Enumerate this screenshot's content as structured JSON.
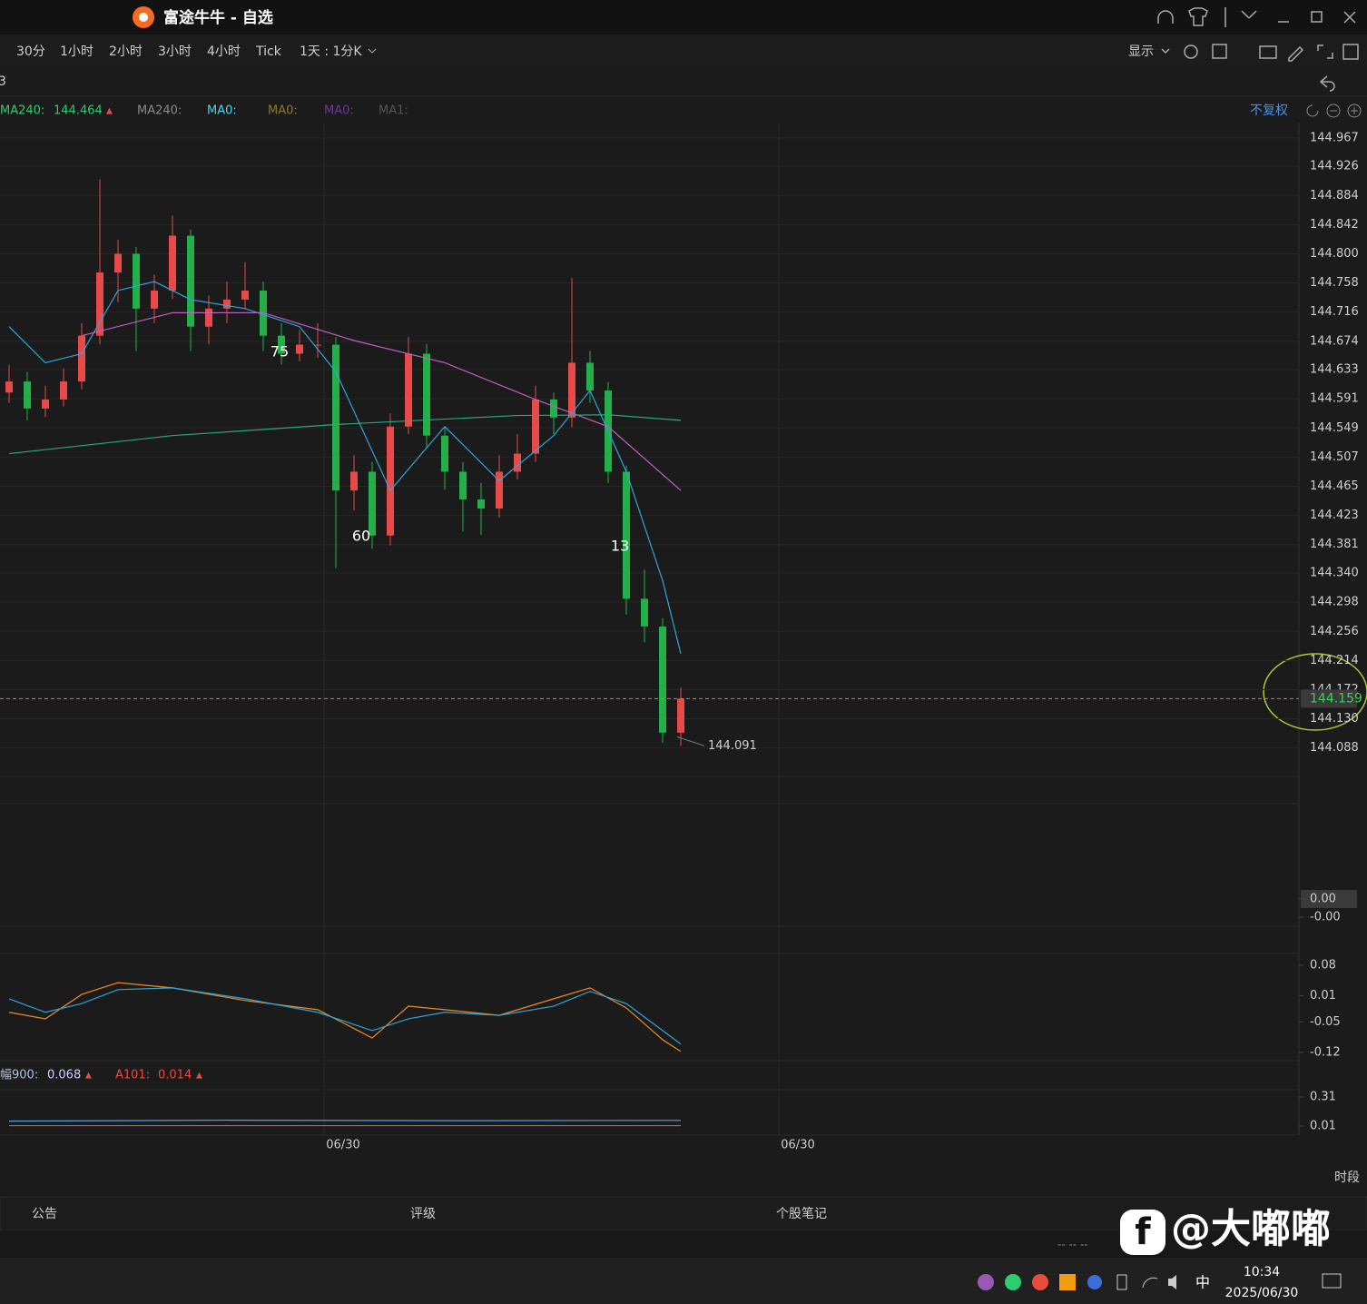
{
  "window": {
    "title": "富途牛牛 - 自选"
  },
  "toolbar": {
    "periods": [
      "30分",
      "1小时",
      "2小时",
      "3小时",
      "4小时",
      "Tick"
    ],
    "period_select": "1天 : 1分K",
    "display": "显示",
    "row_text": "3"
  },
  "ma_legend": [
    {
      "name": "MA240:",
      "value": 144.464,
      "trend": "▲",
      "color": "#2ecc71"
    },
    {
      "name": "MA240:",
      "color": "#8a8a8a"
    },
    {
      "name": "MA0:",
      "color": "#4fd4e8"
    },
    {
      "name": "MA0:",
      "color": "#8a7a30"
    },
    {
      "name": "MA0:",
      "color": "#6a3a9a"
    },
    {
      "name": "MA1:",
      "color": "#555555"
    }
  ],
  "adjust": "不复权",
  "chart_data": [
    {
      "type": "candlestick",
      "up_color": "#e84a4a",
      "down_color": "#22b04a",
      "open": [
        144.6,
        144.616,
        144.577,
        144.59,
        144.616,
        144.682,
        144.773,
        144.8,
        144.721,
        144.747,
        144.826,
        144.695,
        144.721,
        144.734,
        144.747,
        144.682,
        144.656,
        144.669,
        144.669,
        144.459,
        144.486,
        144.394,
        144.551,
        144.656,
        144.538,
        144.486,
        144.446,
        144.433,
        144.486,
        144.512,
        144.59,
        144.564,
        144.643,
        144.603,
        144.486,
        144.303,
        144.263,
        144.11
      ],
      "high": [
        144.64,
        144.63,
        144.61,
        144.635,
        144.7,
        144.907,
        144.82,
        144.81,
        144.77,
        144.855,
        144.835,
        144.74,
        144.76,
        144.788,
        144.76,
        144.7,
        144.69,
        144.7,
        144.68,
        144.51,
        144.5,
        144.57,
        144.68,
        144.67,
        144.55,
        144.5,
        144.47,
        144.51,
        144.54,
        144.61,
        144.6,
        144.765,
        144.66,
        144.615,
        144.495,
        144.345,
        144.275,
        144.175
      ],
      "low": [
        144.585,
        144.56,
        144.565,
        144.58,
        144.605,
        144.67,
        144.73,
        144.66,
        144.7,
        144.735,
        144.66,
        144.67,
        144.7,
        144.72,
        144.66,
        144.64,
        144.645,
        144.65,
        144.347,
        144.43,
        144.375,
        144.38,
        144.54,
        144.52,
        144.46,
        144.4,
        144.395,
        144.42,
        144.475,
        144.5,
        144.54,
        144.55,
        144.585,
        144.47,
        144.28,
        144.24,
        144.095,
        144.091
      ],
      "close": [
        144.616,
        144.577,
        144.59,
        144.616,
        144.682,
        144.773,
        144.8,
        144.721,
        144.747,
        144.826,
        144.695,
        144.721,
        144.734,
        144.747,
        144.682,
        144.656,
        144.669,
        144.669,
        144.459,
        144.486,
        144.394,
        144.551,
        144.656,
        144.538,
        144.486,
        144.446,
        144.433,
        144.486,
        144.512,
        144.59,
        144.564,
        144.643,
        144.603,
        144.486,
        144.303,
        144.263,
        144.11,
        144.159
      ],
      "lines": [
        {
          "color": "#2fa6d9",
          "x": [
            0,
            2,
            4,
            6,
            8,
            10,
            13,
            16,
            18,
            21,
            24,
            27,
            30,
            32,
            34,
            36,
            37
          ],
          "values": [
            144.695,
            144.643,
            144.656,
            144.747,
            144.76,
            144.734,
            144.721,
            144.695,
            144.63,
            144.459,
            144.551,
            144.473,
            144.538,
            144.603,
            144.486,
            144.329,
            144.224
          ]
        },
        {
          "color": "#c060c0",
          "x": [
            4,
            9,
            14,
            19,
            24,
            29,
            33,
            37
          ],
          "values": [
            144.682,
            144.715,
            144.715,
            144.675,
            144.643,
            144.59,
            144.551,
            144.459
          ]
        },
        {
          "color": "#2ca87a",
          "x": [
            0,
            9,
            18,
            28,
            33,
            37
          ],
          "values": [
            144.512,
            144.538,
            144.554,
            144.567,
            144.568,
            144.56
          ]
        }
      ],
      "ylim": [
        144.047,
        144.989
      ],
      "yticks": [
        144.967,
        144.926,
        144.884,
        144.842,
        {
          "value": 144.8,
          "label": "144.800"
        },
        144.758,
        144.716,
        144.674,
        144.633,
        144.591,
        144.549,
        144.507,
        144.465,
        144.423,
        144.381,
        {
          "value": 144.34,
          "label": "144.340"
        },
        144.298,
        144.256,
        144.214,
        144.172,
        {
          "value": 144.13,
          "label": "144.130"
        },
        144.088
      ],
      "last_price": 144.159,
      "low_label": 144.091,
      "annotations": [
        "75",
        "60",
        "13"
      ]
    },
    {
      "type": "line",
      "ylim": [
        -0.0015,
        0.00525
      ],
      "yticks": [
        {
          "value": 0,
          "label": "0.00"
        },
        {
          "value": -0.001,
          "label": "-0.00"
        }
      ],
      "series": []
    },
    {
      "type": "line",
      "ylim": [
        -0.139,
        0.107
      ],
      "yticks": [
        0.08,
        0.01,
        -0.05,
        -0.12
      ],
      "series": [
        {
          "color": "#f08a24",
          "x": [
            0,
            2,
            4,
            6,
            9,
            13,
            17,
            20,
            22,
            24,
            27,
            30,
            32,
            34,
            36,
            37
          ],
          "values": [
            -0.028,
            -0.043,
            0.013,
            0.04,
            0.028,
            -0.001,
            -0.022,
            -0.087,
            -0.014,
            -0.022,
            -0.035,
            0.003,
            0.028,
            -0.018,
            -0.091,
            -0.118
          ]
        },
        {
          "color": "#2fa6d9",
          "x": [
            0,
            2,
            4,
            6,
            9,
            13,
            17,
            20,
            22,
            24,
            27,
            30,
            32,
            34,
            36,
            37
          ],
          "values": [
            0.003,
            -0.028,
            -0.008,
            0.024,
            0.028,
            0.003,
            -0.028,
            -0.07,
            -0.043,
            -0.028,
            -0.035,
            -0.014,
            0.02,
            -0.008,
            -0.07,
            -0.101
          ]
        }
      ]
    },
    {
      "type": "line",
      "ylim": [
        -0.084,
        0.385
      ],
      "yticks": [
        0.31,
        0.01
      ],
      "series": [
        {
          "name": "幅900:",
          "trend": "▲",
          "color": "#5aa0e0",
          "x": [
            0,
            12,
            25,
            37
          ],
          "values": [
            0.06,
            0.07,
            0.065,
            0.068
          ]
        },
        {
          "name": "A101:",
          "trend": "▲",
          "color": "#e84a4a",
          "x": [
            0,
            37
          ],
          "values": [
            0.014,
            0.014
          ]
        }
      ]
    }
  ],
  "time_labels": [
    "06/30",
    "06/30"
  ],
  "period_button": "时段",
  "tabs": [
    "公告",
    "评级",
    "个股笔记"
  ],
  "status": "-- -- --",
  "watermark": "@大嘟嘟",
  "taskbar": {
    "ime": "中",
    "time": "10:34",
    "date": "2025/06/30"
  }
}
